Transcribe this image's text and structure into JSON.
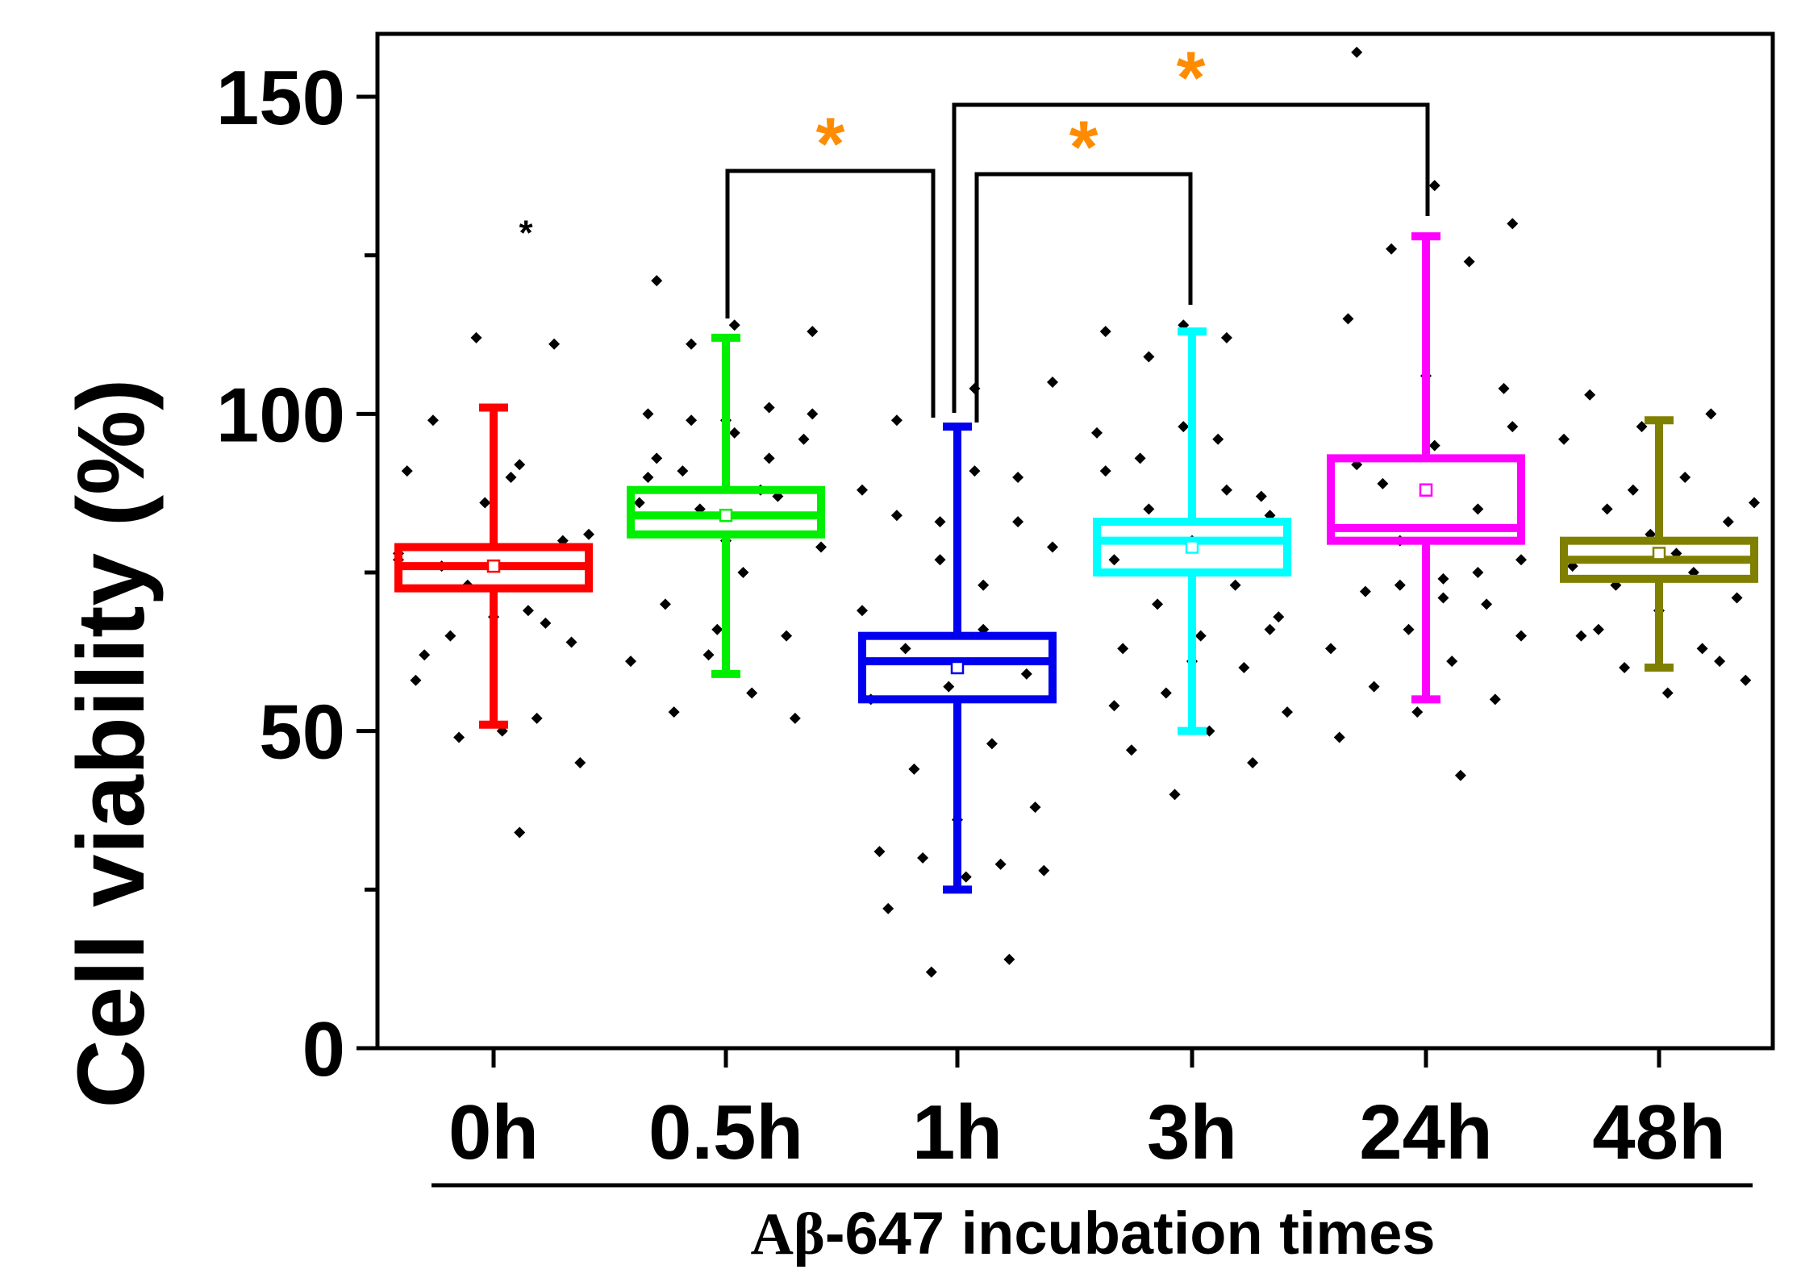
{
  "chart_data": {
    "type": "box",
    "title": "",
    "ylabel": "Cell viability (%)",
    "xlabel_prefix": "Aβ",
    "xlabel_rest": "-647 incubation times",
    "ylim": [
      0,
      160
    ],
    "yticks": [
      0,
      50,
      100,
      150
    ],
    "ytick_labels": [
      "0",
      "50",
      "100",
      "150"
    ],
    "categories": [
      "0h",
      "0.5h",
      "1h",
      "3h",
      "24h",
      "48h"
    ],
    "series": [
      {
        "name": "0h",
        "color": "#ff0000",
        "whisker_low": 51,
        "q1": 72.5,
        "median": 76,
        "q3": 79,
        "whisker_high": 101,
        "mean": 76,
        "outliers": [
          130
        ],
        "points": [
          77,
          92,
          76,
          80,
          86,
          91,
          69,
          65,
          64,
          68,
          58,
          52,
          49,
          45,
          50,
          62,
          67,
          73,
          81,
          90,
          99,
          111,
          112,
          78,
          34
        ]
      },
      {
        "name": "0.5h",
        "color": "#00ee00",
        "whisker_low": 59,
        "q1": 81,
        "median": 84,
        "q3": 88,
        "whisker_high": 112,
        "mean": 84,
        "outliers": [],
        "points": [
          80,
          90,
          93,
          99,
          100,
          97,
          93,
          87,
          85,
          79,
          75,
          70,
          65,
          62,
          61,
          56,
          53,
          52,
          66,
          86,
          88,
          91,
          96,
          99,
          100,
          101,
          111,
          113,
          114,
          121
        ]
      },
      {
        "name": "1h",
        "color": "#0000ee",
        "whisker_low": 25,
        "q1": 55,
        "median": 61,
        "q3": 65,
        "whisker_high": 98,
        "mean": 60,
        "outliers": [],
        "points": [
          79,
          91,
          84,
          83,
          77,
          69,
          66,
          63,
          59,
          57,
          55,
          48,
          44,
          38,
          36,
          31,
          29,
          30,
          28,
          27,
          22,
          14,
          12,
          105,
          104,
          99,
          90,
          83,
          88,
          73
        ]
      },
      {
        "name": "3h",
        "color": "#00ffff",
        "whisker_low": 50,
        "q1": 75,
        "median": 80,
        "q3": 83,
        "whisker_high": 113,
        "mean": 79,
        "outliers": [],
        "points": [
          98,
          91,
          88,
          85,
          84,
          80,
          77,
          73,
          70,
          68,
          65,
          63,
          60,
          56,
          53,
          50,
          47,
          45,
          40,
          97,
          96,
          93,
          87,
          114,
          113,
          112,
          109,
          66,
          61,
          54
        ]
      },
      {
        "name": "24h",
        "color": "#ff00ff",
        "whisker_low": 55,
        "q1": 80,
        "median": 82,
        "q3": 93,
        "whisker_high": 128,
        "mean": 88,
        "outliers": [],
        "points": [
          98,
          95,
          92,
          85,
          80,
          77,
          74,
          72,
          70,
          66,
          63,
          61,
          57,
          55,
          53,
          49,
          43,
          89,
          104,
          106,
          115,
          124,
          126,
          130,
          136,
          157,
          75,
          73,
          65,
          71
        ]
      },
      {
        "name": "48h",
        "color": "#808000",
        "whisker_low": 60,
        "q1": 74,
        "median": 77,
        "q3": 80,
        "whisker_high": 99,
        "mean": 78,
        "outliers": [],
        "points": [
          98,
          96,
          90,
          85,
          83,
          81,
          76,
          75,
          73,
          71,
          69,
          65,
          63,
          60,
          58,
          56,
          103,
          100,
          88,
          86,
          78,
          66,
          61
        ]
      }
    ],
    "significance": [
      {
        "from": "0.5h",
        "to": "1h",
        "label": "*"
      },
      {
        "from": "1h",
        "to": "3h",
        "label": "*"
      },
      {
        "from": "1h",
        "to": "24h",
        "label": "*"
      }
    ],
    "star_color": "#ff8c00"
  }
}
